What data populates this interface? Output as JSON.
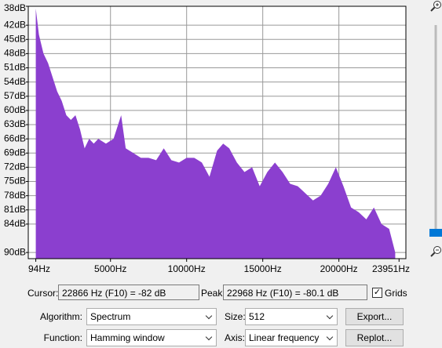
{
  "chart_data": {
    "type": "area",
    "color": "#8b3fcf",
    "grid": true,
    "log_scale": false,
    "x": [
      94,
      300,
      600,
      900,
      1200,
      1500,
      1800,
      2100,
      2400,
      2700,
      3000,
      3300,
      3600,
      3900,
      4200,
      4700,
      5200,
      5700,
      6000,
      6500,
      7000,
      7500,
      8000,
      8500,
      9000,
      9500,
      10000,
      10500,
      11000,
      11500,
      12000,
      12400,
      12800,
      13300,
      13800,
      14300,
      14800,
      15300,
      15800,
      16300,
      16800,
      17300,
      17800,
      18300,
      18800,
      19300,
      19800,
      20300,
      20800,
      21300,
      21800,
      22300,
      22800,
      23300,
      23700
    ],
    "series": [
      {
        "values": [
          -38.5,
          -44,
          -48,
          -50,
          -53,
          -56,
          -58,
          -61,
          -62,
          -61,
          -64,
          -68,
          -66,
          -67,
          -66,
          -67,
          -66,
          -61,
          -68,
          -69,
          -70,
          -70,
          -70.5,
          -68,
          -70.5,
          -71,
          -70,
          -70,
          -71,
          -74,
          -68.5,
          -67,
          -68,
          -71,
          -73,
          -72,
          -76,
          -73,
          -71,
          -73,
          -75.5,
          -76,
          -77.5,
          -79,
          -78,
          -75.5,
          -72,
          -76,
          -80.5,
          -81.5,
          -83,
          -80.5,
          -84,
          -85,
          -90
        ]
      }
    ],
    "xlim": [
      -400,
      24400
    ],
    "ylim": [
      -91.3,
      -38
    ],
    "xticks": [
      {
        "value": 94,
        "label": "94Hz"
      },
      {
        "value": 5000,
        "label": "5000Hz"
      },
      {
        "value": 10000,
        "label": "10000Hz"
      },
      {
        "value": 15000,
        "label": "15000Hz"
      },
      {
        "value": 20000,
        "label": "20000Hz"
      },
      {
        "value": 23951,
        "label": "23951Hz"
      }
    ],
    "yticks": [
      {
        "value": -38,
        "label": "38dB"
      },
      {
        "value": -42,
        "label": "42dB"
      },
      {
        "value": -45,
        "label": "45dB"
      },
      {
        "value": -48,
        "label": "48dB"
      },
      {
        "value": -51,
        "label": "51dB"
      },
      {
        "value": -54,
        "label": "54dB"
      },
      {
        "value": -57,
        "label": "57dB"
      },
      {
        "value": -60,
        "label": "60dB"
      },
      {
        "value": -63,
        "label": "63dB"
      },
      {
        "value": -66,
        "label": "66dB"
      },
      {
        "value": -69,
        "label": "69dB"
      },
      {
        "value": -72,
        "label": "72dB"
      },
      {
        "value": -75,
        "label": "75dB"
      },
      {
        "value": -78,
        "label": "78dB"
      },
      {
        "value": -81,
        "label": "81dB"
      },
      {
        "value": -84,
        "label": "84dB"
      },
      {
        "value": -90,
        "label": "90dB"
      }
    ]
  },
  "controls": {
    "cursor_label": "Cursor:",
    "cursor_value": "22866 Hz (F10) = -82 dB",
    "peak_label": "Peak:",
    "peak_value": "22968 Hz (F10) = -80.1 dB",
    "grids_label": "Grids",
    "algorithm_label": "Algorithm:",
    "algorithm_value": "Spectrum",
    "size_label": "Size:",
    "size_value": "512",
    "export_button": "Export...",
    "function_label": "Function:",
    "function_value": "Hamming window",
    "axis_label": "Axis:",
    "axis_value": "Linear frequency",
    "replot_button": "Replot..."
  }
}
